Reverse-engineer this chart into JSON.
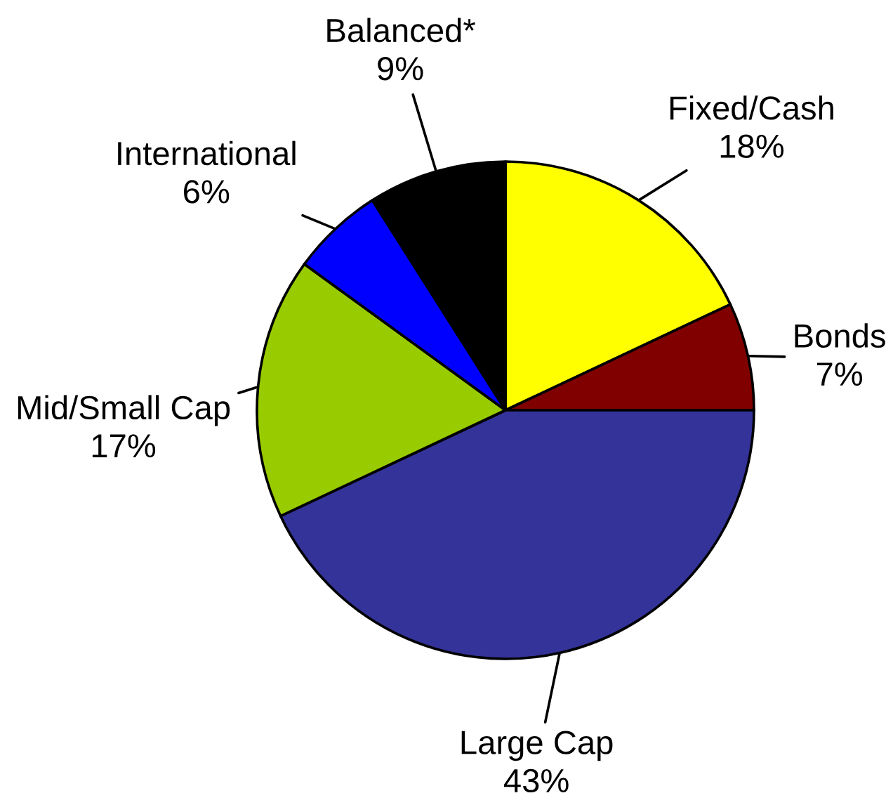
{
  "chart_data": {
    "type": "pie",
    "categories": [
      "Fixed/Cash",
      "Bonds",
      "Large Cap",
      "Mid/Small Cap",
      "International",
      "Balanced*"
    ],
    "values": [
      18,
      7,
      43,
      17,
      6,
      9
    ],
    "colors": [
      "#ffff00",
      "#800000",
      "#333399",
      "#99cc00",
      "#0000ff",
      "#000000"
    ],
    "value_labels": [
      "18%",
      "7%",
      "43%",
      "17%",
      "6%",
      "9%"
    ]
  }
}
